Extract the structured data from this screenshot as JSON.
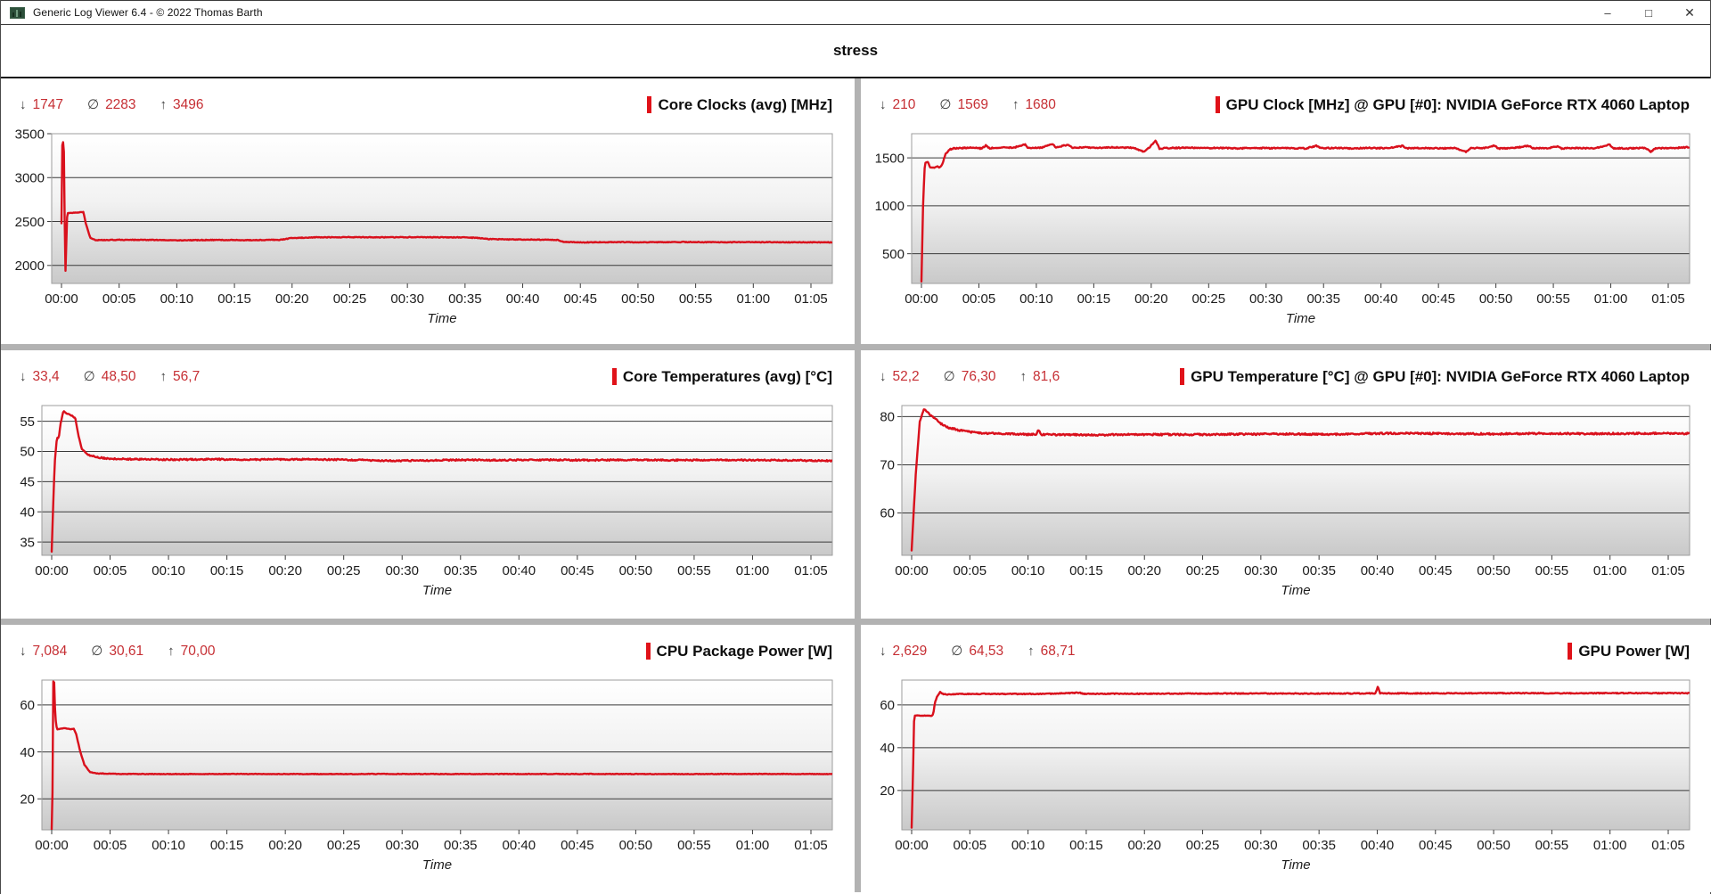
{
  "window": {
    "title": "Generic Log Viewer 6.4 - © 2022 Thomas Barth",
    "controls": {
      "minimize": "–",
      "maximize": "□",
      "close": "✕"
    }
  },
  "header": {
    "title": "stress"
  },
  "stats_symbols": {
    "min": "↓",
    "avg": "∅",
    "max": "↑"
  },
  "axis": {
    "time_label": "Time",
    "x_ticks": [
      "00:00",
      "00:05",
      "00:10",
      "00:15",
      "00:20",
      "00:25",
      "00:30",
      "00:35",
      "00:40",
      "00:45",
      "00:50",
      "00:55",
      "01:00",
      "01:05"
    ]
  },
  "colors": {
    "line": "#d9101c",
    "stat_value": "#c62f34",
    "stat_symbol": "#3d3d3d",
    "title_marker": "#e01219",
    "grid_line": "#3a3a3a",
    "plot_frame": "#9e9e9e",
    "divider": "#b2b2b2",
    "plot_gradient_top": "#ffffff",
    "plot_gradient_bottom": "#c9c9c9"
  },
  "chart_data": [
    {
      "type": "line",
      "title": "Core Clocks (avg) [MHz]",
      "stats": {
        "min": "1747",
        "avg": "2283",
        "max": "3496"
      },
      "ylim": [
        1795,
        3500
      ],
      "yticks": [
        3500,
        3000,
        2500,
        2000
      ],
      "tmax": 66.8,
      "noise": 4,
      "points": [
        [
          0,
          2480
        ],
        [
          0.08,
          3496
        ],
        [
          0.22,
          3280
        ],
        [
          0.33,
          1852
        ],
        [
          0.5,
          2595
        ],
        [
          1.9,
          2608
        ],
        [
          2.1,
          2480
        ],
        [
          2.5,
          2312
        ],
        [
          3,
          2288
        ],
        [
          5,
          2292
        ],
        [
          8,
          2290
        ],
        [
          10,
          2286
        ],
        [
          13,
          2290
        ],
        [
          16,
          2288
        ],
        [
          19,
          2292
        ],
        [
          20,
          2312
        ],
        [
          22,
          2320
        ],
        [
          25,
          2322
        ],
        [
          28,
          2320
        ],
        [
          31,
          2322
        ],
        [
          34,
          2320
        ],
        [
          36,
          2315
        ],
        [
          37,
          2300
        ],
        [
          39,
          2296
        ],
        [
          41,
          2294
        ],
        [
          43,
          2290
        ],
        [
          43.6,
          2268
        ],
        [
          45,
          2262
        ],
        [
          48,
          2266
        ],
        [
          51,
          2264
        ],
        [
          54,
          2267
        ],
        [
          57,
          2264
        ],
        [
          60,
          2266
        ],
        [
          63,
          2264
        ],
        [
          66.8,
          2263
        ]
      ]
    },
    {
      "type": "line",
      "title": "GPU Clock [MHz] @ GPU [#0]: NVIDIA GeForce RTX 4060 Laptop",
      "stats": {
        "min": "210",
        "avg": "1569",
        "max": "1680"
      },
      "ylim": [
        190,
        1752
      ],
      "yticks": [
        1500,
        1000,
        500
      ],
      "tmax": 66.8,
      "noise": 6,
      "points": [
        [
          0,
          210
        ],
        [
          0.15,
          1050
        ],
        [
          0.3,
          1445
        ],
        [
          0.55,
          1460
        ],
        [
          0.75,
          1402
        ],
        [
          1.1,
          1398
        ],
        [
          1.4,
          1412
        ],
        [
          1.6,
          1398
        ],
        [
          1.85,
          1445
        ],
        [
          2.1,
          1540
        ],
        [
          2.4,
          1585
        ],
        [
          2.8,
          1598
        ],
        [
          3.5,
          1602
        ],
        [
          4.5,
          1606
        ],
        [
          5.2,
          1598
        ],
        [
          5.6,
          1628
        ],
        [
          5.9,
          1600
        ],
        [
          7,
          1610
        ],
        [
          8,
          1604
        ],
        [
          9,
          1642
        ],
        [
          9.3,
          1602
        ],
        [
          10.5,
          1608
        ],
        [
          11.4,
          1648
        ],
        [
          11.7,
          1606
        ],
        [
          12.8,
          1640
        ],
        [
          13.1,
          1604
        ],
        [
          14,
          1610
        ],
        [
          15.5,
          1604
        ],
        [
          17,
          1610
        ],
        [
          18.5,
          1604
        ],
        [
          19.4,
          1562
        ],
        [
          19.8,
          1605
        ],
        [
          20.4,
          1680
        ],
        [
          20.7,
          1598
        ],
        [
          21.5,
          1602
        ],
        [
          23,
          1606
        ],
        [
          24.5,
          1600
        ],
        [
          26,
          1604
        ],
        [
          27.5,
          1599
        ],
        [
          29,
          1603
        ],
        [
          30.5,
          1600
        ],
        [
          32,
          1603
        ],
        [
          33.5,
          1599
        ],
        [
          34.4,
          1626
        ],
        [
          34.8,
          1601
        ],
        [
          36,
          1603
        ],
        [
          37.5,
          1599
        ],
        [
          39,
          1603
        ],
        [
          40.5,
          1600
        ],
        [
          41.9,
          1624
        ],
        [
          42.2,
          1600
        ],
        [
          43.5,
          1603
        ],
        [
          45,
          1599
        ],
        [
          46.5,
          1603
        ],
        [
          47.4,
          1562
        ],
        [
          47.8,
          1601
        ],
        [
          49,
          1603
        ],
        [
          49.9,
          1627
        ],
        [
          50.2,
          1599
        ],
        [
          51.5,
          1602
        ],
        [
          52.9,
          1626
        ],
        [
          53.2,
          1601
        ],
        [
          54.5,
          1600
        ],
        [
          55.4,
          1622
        ],
        [
          55.7,
          1599
        ],
        [
          57,
          1603
        ],
        [
          58.5,
          1600
        ],
        [
          59.9,
          1636
        ],
        [
          60.2,
          1601
        ],
        [
          61.5,
          1599
        ],
        [
          63,
          1603
        ],
        [
          63.5,
          1564
        ],
        [
          63.9,
          1602
        ],
        [
          65,
          1601
        ],
        [
          66,
          1606
        ],
        [
          66.8,
          1612
        ]
      ]
    },
    {
      "type": "line",
      "title": "Core Temperatures (avg) [°C]",
      "stats": {
        "min": "33,4",
        "avg": "48,50",
        "max": "56,7"
      },
      "ylim": [
        32.8,
        57.6
      ],
      "yticks": [
        55,
        50,
        45,
        40,
        35
      ],
      "tmax": 66.8,
      "noise": 0.12,
      "points": [
        [
          0,
          33.4
        ],
        [
          0.25,
          48
        ],
        [
          0.45,
          52.3
        ],
        [
          0.6,
          52.2
        ],
        [
          0.75,
          54.5
        ],
        [
          1,
          56.7
        ],
        [
          1.4,
          56.2
        ],
        [
          1.8,
          55.9
        ],
        [
          2.05,
          55.3
        ],
        [
          2.3,
          52.5
        ],
        [
          2.6,
          50.3
        ],
        [
          3.2,
          49.4
        ],
        [
          4,
          49
        ],
        [
          5,
          48.8
        ],
        [
          7,
          48.7
        ],
        [
          10,
          48.65
        ],
        [
          14,
          48.7
        ],
        [
          18,
          48.65
        ],
        [
          22,
          48.7
        ],
        [
          26,
          48.6
        ],
        [
          29,
          48.45
        ],
        [
          32,
          48.5
        ],
        [
          35,
          48.6
        ],
        [
          38,
          48.55
        ],
        [
          42,
          48.6
        ],
        [
          46,
          48.55
        ],
        [
          50,
          48.6
        ],
        [
          54,
          48.55
        ],
        [
          58,
          48.6
        ],
        [
          62,
          48.55
        ],
        [
          66.8,
          48.45
        ]
      ]
    },
    {
      "type": "line",
      "title": "GPU Temperature [°C] @ GPU [#0]: NVIDIA GeForce RTX 4060 Laptop",
      "stats": {
        "min": "52,2",
        "avg": "76,30",
        "max": "81,6"
      },
      "ylim": [
        51.2,
        82.3
      ],
      "yticks": [
        80,
        70,
        60
      ],
      "tmax": 66.8,
      "noise": 0.18,
      "points": [
        [
          0,
          52.2
        ],
        [
          0.35,
          68
        ],
        [
          0.7,
          79
        ],
        [
          1.05,
          81.6
        ],
        [
          1.5,
          80.6
        ],
        [
          2,
          79.6
        ],
        [
          2.6,
          78.4
        ],
        [
          3.2,
          77.7
        ],
        [
          4,
          77.2
        ],
        [
          5,
          76.8
        ],
        [
          6,
          76.6
        ],
        [
          7.5,
          76.45
        ],
        [
          9,
          76.35
        ],
        [
          10.7,
          76.3
        ],
        [
          10.9,
          77.3
        ],
        [
          11.1,
          76.3
        ],
        [
          13,
          76.25
        ],
        [
          16,
          76.2
        ],
        [
          20,
          76.3
        ],
        [
          24,
          76.25
        ],
        [
          28,
          76.35
        ],
        [
          32,
          76.4
        ],
        [
          36,
          76.3
        ],
        [
          40,
          76.5
        ],
        [
          43,
          76.55
        ],
        [
          46,
          76.45
        ],
        [
          50,
          76.4
        ],
        [
          54,
          76.5
        ],
        [
          58,
          76.45
        ],
        [
          62,
          76.5
        ],
        [
          66.8,
          76.5
        ]
      ]
    },
    {
      "type": "line",
      "title": "CPU Package Power [W]",
      "stats": {
        "min": "7,084",
        "avg": "30,61",
        "max": "70,00"
      },
      "ylim": [
        6.8,
        70.6
      ],
      "yticks": [
        60,
        40,
        20
      ],
      "tmax": 66.8,
      "noise": 0.12,
      "points": [
        [
          0,
          7.1
        ],
        [
          0.08,
          25
        ],
        [
          0.14,
          70
        ],
        [
          0.22,
          69.5
        ],
        [
          0.3,
          55
        ],
        [
          0.45,
          49.6
        ],
        [
          0.8,
          49.9
        ],
        [
          1.1,
          50.1
        ],
        [
          1.5,
          49.7
        ],
        [
          1.9,
          49.8
        ],
        [
          2.1,
          47.5
        ],
        [
          2.4,
          41
        ],
        [
          2.8,
          34.5
        ],
        [
          3.3,
          31.3
        ],
        [
          4,
          30.8
        ],
        [
          6,
          30.6
        ],
        [
          9,
          30.55
        ],
        [
          15,
          30.6
        ],
        [
          22,
          30.55
        ],
        [
          30,
          30.6
        ],
        [
          38,
          30.55
        ],
        [
          46,
          30.6
        ],
        [
          54,
          30.55
        ],
        [
          62,
          30.6
        ],
        [
          66.8,
          30.55
        ]
      ]
    },
    {
      "type": "line",
      "title": "GPU Power [W]",
      "stats": {
        "min": "2,629",
        "avg": "64,53",
        "max": "68,71"
      },
      "ylim": [
        1.6,
        71.6
      ],
      "yticks": [
        60,
        40,
        20
      ],
      "tmax": 66.8,
      "noise": 0.2,
      "points": [
        [
          0,
          2.6
        ],
        [
          0.12,
          28
        ],
        [
          0.22,
          55
        ],
        [
          0.5,
          55.1
        ],
        [
          0.9,
          54.9
        ],
        [
          1.3,
          55.1
        ],
        [
          1.7,
          54.9
        ],
        [
          1.85,
          55.5
        ],
        [
          2,
          61
        ],
        [
          2.2,
          64.3
        ],
        [
          2.45,
          65.9
        ],
        [
          2.7,
          65.1
        ],
        [
          3.2,
          64.9
        ],
        [
          4,
          65.1
        ],
        [
          6,
          65.15
        ],
        [
          9,
          65.1
        ],
        [
          12,
          65.2
        ],
        [
          14.4,
          65.7
        ],
        [
          14.8,
          65.2
        ],
        [
          18,
          65.2
        ],
        [
          22,
          65.25
        ],
        [
          26,
          65.3
        ],
        [
          30,
          65.35
        ],
        [
          34,
          65.3
        ],
        [
          38,
          65.35
        ],
        [
          39.85,
          65.4
        ],
        [
          40.05,
          68.7
        ],
        [
          40.25,
          65.4
        ],
        [
          44,
          65.4
        ],
        [
          48,
          65.45
        ],
        [
          52,
          65.5
        ],
        [
          56,
          65.45
        ],
        [
          60,
          65.5
        ],
        [
          64,
          65.5
        ],
        [
          66.8,
          65.5
        ]
      ]
    }
  ]
}
